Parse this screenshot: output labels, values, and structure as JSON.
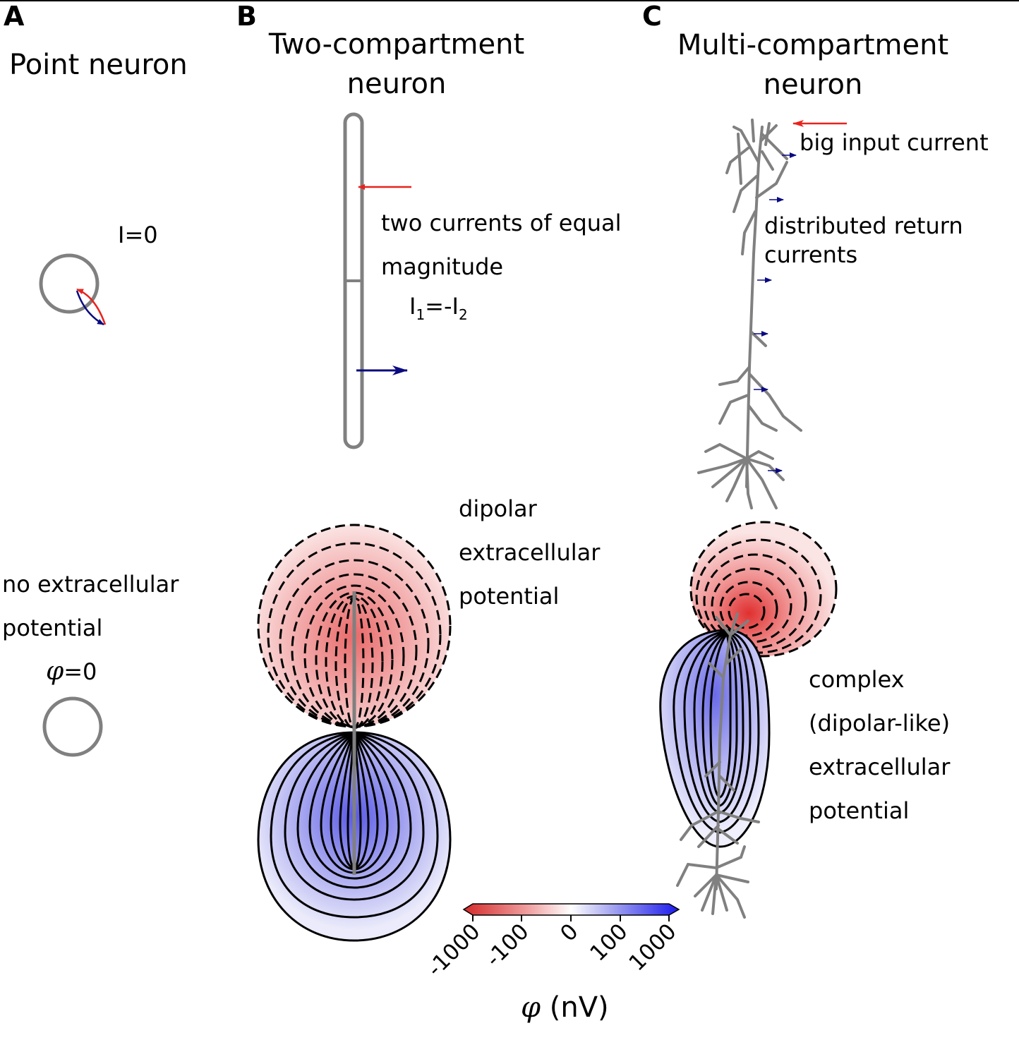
{
  "panel_a": {
    "letter": "A",
    "title": "Point neuron",
    "current_label": "I=0",
    "potential_label_line1": "no extracellular",
    "potential_label_line2": "potential",
    "phi_symbol": "φ",
    "phi_value": "=0"
  },
  "panel_b": {
    "letter": "B",
    "title_line1": "Two-compartment",
    "title_line2": "neuron",
    "currents_line1": "two currents of equal",
    "currents_line2": "magnitude",
    "eq_i1": "I",
    "eq_sub1": "1",
    "eq_mid": "=-I",
    "eq_sub2": "2",
    "potential_line1": "dipolar",
    "potential_line2": "extracellular",
    "potential_line3": "potential"
  },
  "panel_c": {
    "letter": "C",
    "title_line1": "Multi-compartment",
    "title_line2": "neuron",
    "input_label": "big input current",
    "return_line1": "distributed return",
    "return_line2": "currents",
    "potential_line1": "complex",
    "potential_line2": "(dipolar-like)",
    "potential_line3": "extracellular",
    "potential_line4": "potential"
  },
  "colorbar": {
    "ticks": [
      "-1000",
      "-100",
      "0",
      "100",
      "1000"
    ],
    "label_symbol": "φ",
    "label_unit": " (nV)",
    "colors": {
      "negative": "#d42a2a",
      "zero": "#ffffff",
      "positive": "#1a1aee"
    }
  },
  "colors": {
    "neuron": "#808080",
    "input_arrow": "#e8231d",
    "return_arrow": "#0a0a80"
  }
}
